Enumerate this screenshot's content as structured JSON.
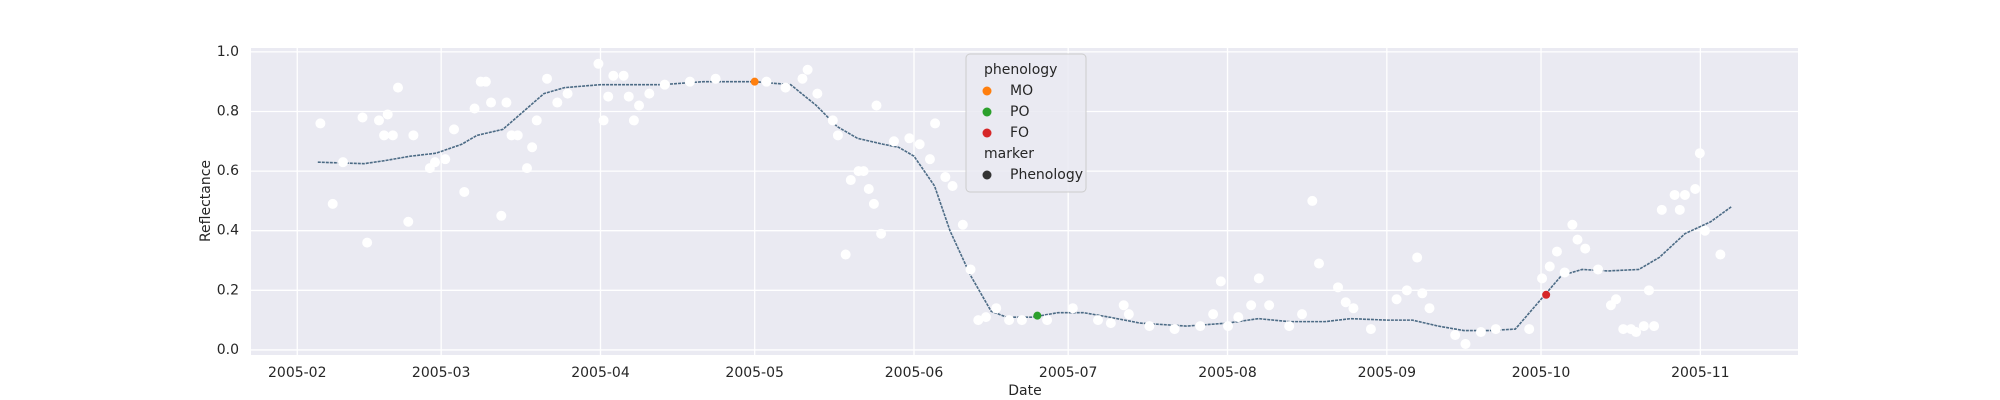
{
  "chart_data": {
    "type": "scatter",
    "xlabel": "Date",
    "ylabel": "Reflectance",
    "xlim": [
      23,
      324
    ],
    "ylim": [
      -0.017,
      1.013
    ],
    "xticks": [
      {
        "value": 32,
        "label": "2005-02"
      },
      {
        "value": 60,
        "label": "2005-03"
      },
      {
        "value": 91,
        "label": "2005-04"
      },
      {
        "value": 121,
        "label": "2005-05"
      },
      {
        "value": 152,
        "label": "2005-06"
      },
      {
        "value": 182,
        "label": "2005-07"
      },
      {
        "value": 213,
        "label": "2005-08"
      },
      {
        "value": 244,
        "label": "2005-09"
      },
      {
        "value": 274,
        "label": "2005-10"
      },
      {
        "value": 305,
        "label": "2005-11"
      }
    ],
    "yticks": [
      {
        "value": 0,
        "label": "0.0"
      },
      {
        "value": 0.2,
        "label": "0.2"
      },
      {
        "value": 0.4,
        "label": "0.4"
      },
      {
        "value": 0.6,
        "label": "0.6"
      },
      {
        "value": 0.8,
        "label": "0.8"
      },
      {
        "value": 1,
        "label": "1.0"
      }
    ],
    "grid": true,
    "background": "#eaeaf2",
    "legend_loc": "upper center",
    "series": [
      {
        "type": "scatter",
        "color": "#ffffff",
        "x": [
          36.5,
          38.9,
          40.9,
          44.7,
          45.6,
          47.9,
          48.9,
          49.6,
          50.6,
          51.6,
          53.6,
          54.6,
          57.8,
          58.8,
          60.8,
          62.5,
          64.5,
          66.5,
          67.7,
          68.7,
          69.7,
          71.7,
          72.7,
          73.7,
          74.9,
          76.7,
          77.7,
          78.6,
          80.6,
          82.6,
          84.6,
          90.6,
          91.6,
          92.5,
          93.5,
          95.5,
          96.5,
          97.5,
          98.5,
          100.5,
          103.5,
          108.4,
          113.4,
          123.3,
          127,
          130.3,
          131.3,
          133.2,
          136.2,
          137.2,
          138.7,
          139.7,
          141.2,
          142.2,
          143.2,
          144.2,
          144.7,
          145.6,
          148.1,
          151.1,
          153.1,
          155.1,
          156.1,
          158.1,
          159.5,
          161.5,
          163,
          164.5,
          166,
          168,
          170.5,
          173,
          177.9,
          182.9,
          187.8,
          190.3,
          192.8,
          193.8,
          197.8,
          202.7,
          207.7,
          210.2,
          211.7,
          213.1,
          215.1,
          217.6,
          219.1,
          221.1,
          225,
          227.5,
          229.5,
          230.8,
          234.5,
          236,
          237.5,
          240.9,
          245.9,
          247.9,
          249.9,
          250.9,
          252.3,
          257.3,
          259.3,
          262.3,
          265.2,
          271.7,
          274.2,
          275.7,
          277.1,
          278.6,
          280.1,
          281.1,
          282.6,
          285.1,
          287.6,
          288.6,
          290,
          291.5,
          292.5,
          294,
          295,
          296,
          297.5,
          300,
          301,
          302,
          304,
          304.9,
          305.9,
          308.9
        ],
        "values": [
          0.76,
          0.49,
          0.63,
          0.78,
          0.36,
          0.77,
          0.72,
          0.79,
          0.72,
          0.88,
          0.43,
          0.72,
          0.61,
          0.63,
          0.64,
          0.74,
          0.53,
          0.81,
          0.9,
          0.9,
          0.83,
          0.45,
          0.83,
          0.72,
          0.72,
          0.61,
          0.68,
          0.77,
          0.91,
          0.83,
          0.86,
          0.96,
          0.77,
          0.85,
          0.92,
          0.92,
          0.85,
          0.77,
          0.82,
          0.86,
          0.89,
          0.9,
          0.91,
          0.9,
          0.88,
          0.91,
          0.94,
          0.86,
          0.77,
          0.72,
          0.32,
          0.57,
          0.6,
          0.6,
          0.54,
          0.49,
          0.82,
          0.39,
          0.7,
          0.71,
          0.69,
          0.64,
          0.76,
          0.58,
          0.55,
          0.42,
          0.27,
          0.1,
          0.11,
          0.14,
          0.1,
          0.1,
          0.1,
          0.14,
          0.1,
          0.09,
          0.15,
          0.12,
          0.08,
          0.07,
          0.08,
          0.12,
          0.23,
          0.08,
          0.11,
          0.15,
          0.24,
          0.15,
          0.08,
          0.12,
          0.5,
          0.29,
          0.21,
          0.16,
          0.14,
          0.07,
          0.17,
          0.2,
          0.31,
          0.19,
          0.14,
          0.05,
          0.02,
          0.06,
          0.07,
          0.07,
          0.24,
          0.28,
          0.33,
          0.26,
          0.42,
          0.37,
          0.34,
          0.27,
          0.15,
          0.17,
          0.07,
          0.07,
          0.06,
          0.08,
          0.2,
          0.08,
          0.47,
          0.52,
          0.47,
          0.52,
          0.54,
          0.66,
          0.4,
          0.32
        ]
      },
      {
        "type": "line",
        "color": "#4c6b85",
        "x": [
          36,
          45,
          49,
          54,
          59,
          64,
          67,
          72,
          76,
          80,
          84,
          91,
          103,
          111,
          121,
          128,
          133,
          137,
          141,
          146,
          149,
          152,
          156,
          159,
          163,
          167,
          170,
          175,
          180,
          185,
          190,
          196,
          205,
          213,
          219,
          225,
          232,
          237,
          244,
          249,
          254,
          259,
          264,
          269,
          275,
          278,
          282,
          287,
          293,
          297,
          302,
          307,
          311
        ],
        "values": [
          0.63,
          0.625,
          0.635,
          0.65,
          0.66,
          0.69,
          0.72,
          0.74,
          0.8,
          0.86,
          0.88,
          0.89,
          0.89,
          0.9,
          0.9,
          0.89,
          0.82,
          0.75,
          0.71,
          0.69,
          0.68,
          0.65,
          0.55,
          0.4,
          0.25,
          0.13,
          0.11,
          0.11,
          0.125,
          0.125,
          0.11,
          0.09,
          0.08,
          0.09,
          0.105,
          0.095,
          0.095,
          0.105,
          0.1,
          0.1,
          0.08,
          0.065,
          0.065,
          0.07,
          0.19,
          0.25,
          0.27,
          0.265,
          0.27,
          0.31,
          0.39,
          0.43,
          0.48
        ]
      },
      {
        "type": "scatter",
        "name": "MO",
        "color": "#ff7f0e",
        "x": [
          121
        ],
        "values": [
          0.9
        ]
      },
      {
        "type": "scatter",
        "name": "PO",
        "color": "#2ca02c",
        "x": [
          176
        ],
        "values": [
          0.115
        ]
      },
      {
        "type": "scatter",
        "name": "FO",
        "color": "#d62728",
        "x": [
          275
        ],
        "values": [
          0.185
        ]
      }
    ],
    "legend_title": "phenology",
    "marker_legend": {
      "title": "marker",
      "name": "Phenology",
      "color": "#333333"
    }
  }
}
